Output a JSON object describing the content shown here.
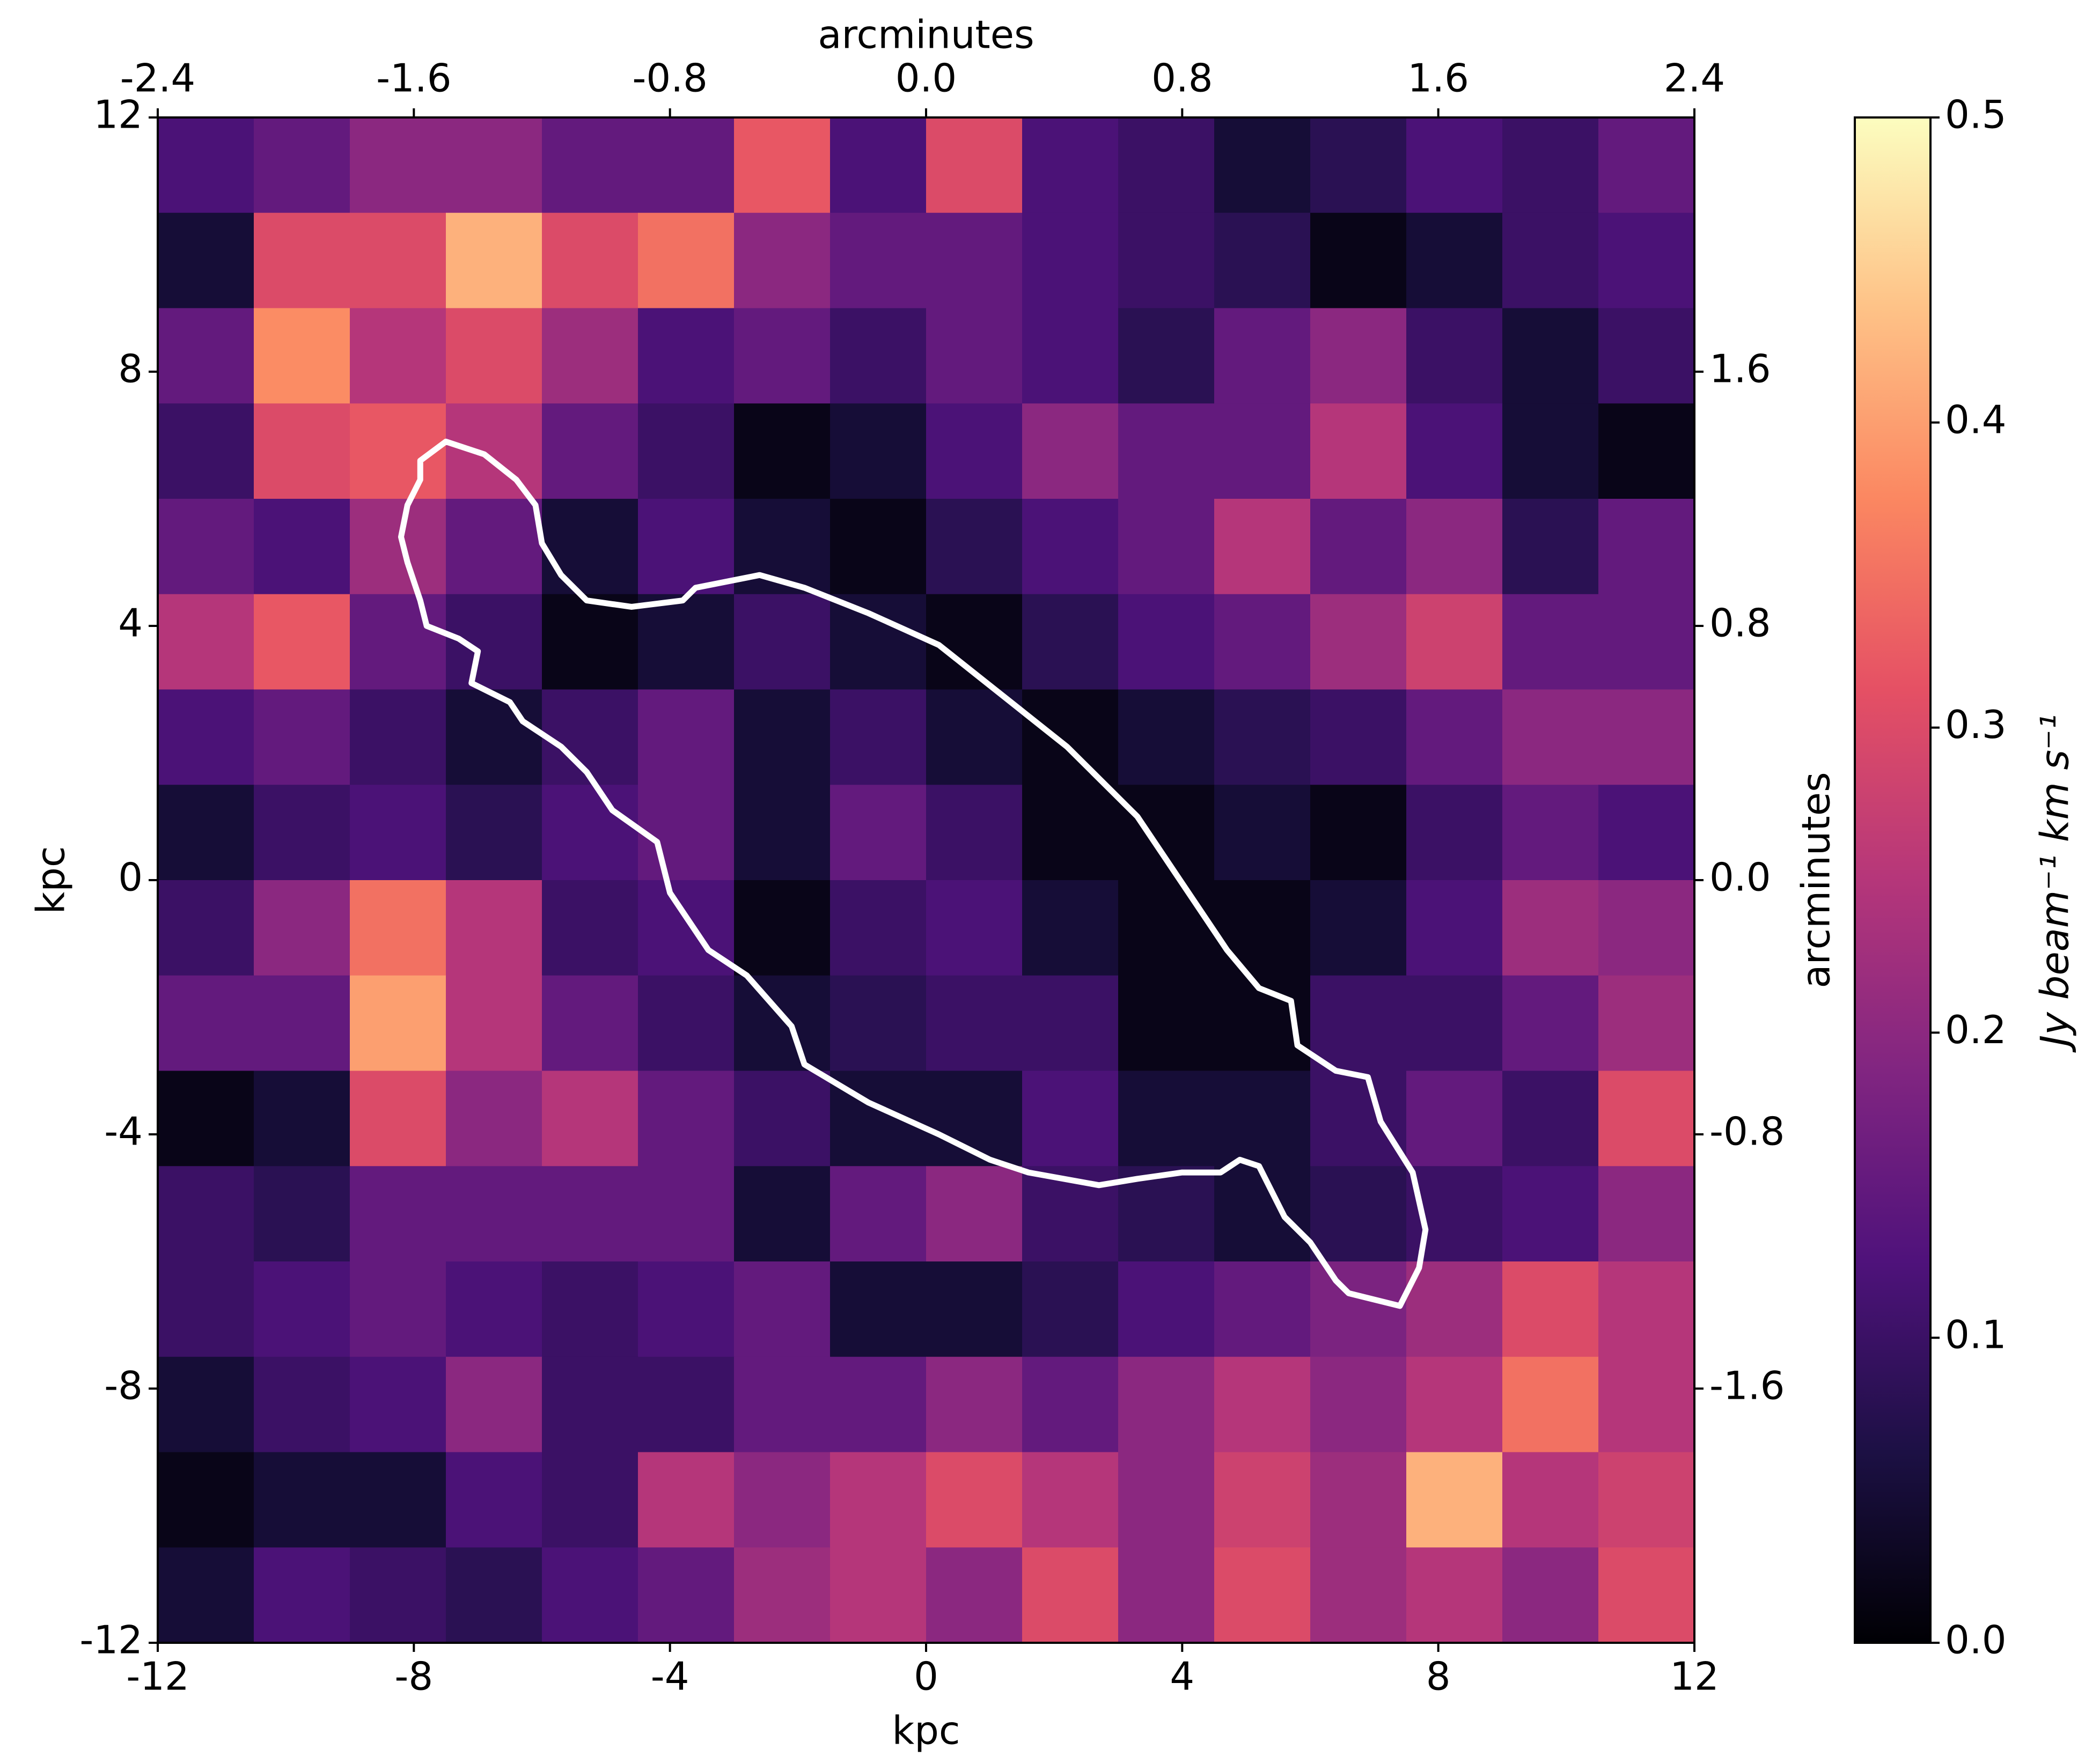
{
  "chart_data": {
    "type": "heatmap",
    "colormap": "magma",
    "xlabel": "kpc",
    "ylabel": "kpc",
    "x2label": "arcminutes",
    "y2label": "arcminutes",
    "xlim": [
      -12,
      12
    ],
    "ylim": [
      -12,
      12
    ],
    "xticks": [
      -12,
      -8,
      -4,
      0,
      4,
      8,
      12
    ],
    "yticks": [
      -12,
      -8,
      -4,
      0,
      4,
      8,
      12
    ],
    "x2lim": [
      -2.4,
      2.4
    ],
    "y2lim": [
      -2.4,
      2.4
    ],
    "x2ticks": [
      -2.4,
      -1.6,
      -0.8,
      {
        "value": 0,
        "label": "0.0"
      },
      0.8,
      1.6,
      2.4
    ],
    "y2ticks": [
      1.6,
      0.8,
      {
        "value": 0,
        "label": "0.0"
      },
      -0.8,
      -1.6
    ],
    "clim": [
      0,
      0.5
    ],
    "cticks": [
      {
        "value": 0,
        "label": "0.0"
      },
      0.1,
      0.2,
      0.3,
      0.4,
      0.5
    ],
    "clabel": "Jy beam⁻¹ km s⁻¹",
    "values": [
      [
        0.12,
        0.15,
        0.2,
        0.2,
        0.15,
        0.15,
        0.32,
        0.12,
        0.3,
        0.12,
        0.1,
        0.05,
        0.08,
        0.12,
        0.1,
        0.15
      ],
      [
        0.05,
        0.3,
        0.3,
        0.42,
        0.3,
        0.35,
        0.2,
        0.15,
        0.15,
        0.12,
        0.1,
        0.08,
        0.02,
        0.05,
        0.1,
        0.12
      ],
      [
        0.15,
        0.38,
        0.25,
        0.3,
        0.22,
        0.12,
        0.15,
        0.1,
        0.15,
        0.12,
        0.08,
        0.15,
        0.2,
        0.1,
        0.05,
        0.1
      ],
      [
        0.1,
        0.3,
        0.32,
        0.25,
        0.15,
        0.1,
        0.02,
        0.05,
        0.12,
        0.2,
        0.15,
        0.15,
        0.25,
        0.12,
        0.05,
        0.02
      ],
      [
        0.15,
        0.12,
        0.22,
        0.15,
        0.05,
        0.12,
        0.05,
        0.02,
        0.08,
        0.12,
        0.15,
        0.25,
        0.15,
        0.2,
        0.08,
        0.15
      ],
      [
        0.25,
        0.32,
        0.15,
        0.1,
        0.02,
        0.05,
        0.1,
        0.05,
        0.02,
        0.08,
        0.12,
        0.15,
        0.22,
        0.28,
        0.15,
        0.15
      ],
      [
        0.12,
        0.15,
        0.1,
        0.05,
        0.1,
        0.15,
        0.05,
        0.1,
        0.05,
        0.02,
        0.05,
        0.08,
        0.1,
        0.15,
        0.2,
        0.2
      ],
      [
        0.05,
        0.1,
        0.12,
        0.08,
        0.12,
        0.15,
        0.05,
        0.15,
        0.1,
        0.02,
        0.02,
        0.05,
        0.02,
        0.1,
        0.15,
        0.12
      ],
      [
        0.1,
        0.2,
        0.35,
        0.25,
        0.1,
        0.12,
        0.02,
        0.1,
        0.12,
        0.05,
        0.02,
        0.02,
        0.05,
        0.12,
        0.22,
        0.2
      ],
      [
        0.15,
        0.15,
        0.4,
        0.25,
        0.15,
        0.1,
        0.05,
        0.08,
        0.1,
        0.1,
        0.02,
        0.02,
        0.1,
        0.1,
        0.15,
        0.22
      ],
      [
        0.02,
        0.05,
        0.3,
        0.2,
        0.25,
        0.15,
        0.1,
        0.05,
        0.05,
        0.12,
        0.05,
        0.05,
        0.1,
        0.15,
        0.1,
        0.3
      ],
      [
        0.1,
        0.08,
        0.15,
        0.15,
        0.15,
        0.15,
        0.05,
        0.15,
        0.2,
        0.1,
        0.08,
        0.05,
        0.08,
        0.1,
        0.12,
        0.2
      ],
      [
        0.1,
        0.12,
        0.15,
        0.12,
        0.1,
        0.12,
        0.15,
        0.05,
        0.05,
        0.08,
        0.12,
        0.15,
        0.18,
        0.22,
        0.3,
        0.25
      ],
      [
        0.05,
        0.1,
        0.12,
        0.2,
        0.1,
        0.1,
        0.15,
        0.15,
        0.2,
        0.15,
        0.2,
        0.25,
        0.2,
        0.25,
        0.35,
        0.25
      ],
      [
        0.02,
        0.05,
        0.05,
        0.12,
        0.1,
        0.25,
        0.2,
        0.25,
        0.3,
        0.25,
        0.2,
        0.28,
        0.22,
        0.42,
        0.25,
        0.28
      ],
      [
        0.05,
        0.12,
        0.1,
        0.08,
        0.12,
        0.15,
        0.22,
        0.25,
        0.2,
        0.3,
        0.2,
        0.3,
        0.22,
        0.25,
        0.2,
        0.3
      ]
    ],
    "contour": {
      "color": "#ffffff",
      "x": [
        -7.9,
        -7.5,
        -6.9,
        -6.4,
        -6.1,
        -6.0,
        -5.7,
        -5.3,
        -4.6,
        -3.8,
        -3.6,
        -2.6,
        -1.9,
        -0.9,
        0.2,
        1.2,
        2.2,
        3.3,
        4.1,
        4.7,
        5.2,
        5.7,
        5.8,
        6.4,
        6.9,
        7.1,
        7.6,
        7.8,
        7.7,
        7.4,
        6.6,
        6.4,
        6.0,
        5.6,
        5.2,
        4.9,
        4.6,
        4.0,
        3.3,
        2.7,
        1.6,
        1.0,
        0.2,
        -0.9,
        -1.9,
        -2.1,
        -2.8,
        -3.4,
        -4.0,
        -4.2,
        -4.9,
        -5.3,
        -5.7,
        -6.3,
        -6.5,
        -7.1,
        -7.0,
        -7.3,
        -7.8,
        -7.9,
        -8.1,
        -8.2,
        -8.1,
        -7.9
      ],
      "y": [
        6.6,
        6.9,
        6.7,
        6.3,
        5.9,
        5.3,
        4.8,
        4.4,
        4.3,
        4.4,
        4.6,
        4.8,
        4.6,
        4.2,
        3.7,
        2.9,
        2.1,
        1.0,
        -0.2,
        -1.1,
        -1.7,
        -1.9,
        -2.6,
        -3.0,
        -3.1,
        -3.8,
        -4.6,
        -5.5,
        -6.1,
        -6.7,
        -6.5,
        -6.3,
        -5.7,
        -5.3,
        -4.5,
        -4.4,
        -4.6,
        -4.6,
        -4.7,
        -4.8,
        -4.6,
        -4.4,
        -4.0,
        -3.5,
        -2.9,
        -2.3,
        -1.5,
        -1.1,
        -0.2,
        0.6,
        1.1,
        1.7,
        2.1,
        2.5,
        2.8,
        3.1,
        3.6,
        3.8,
        4.0,
        4.4,
        5.0,
        5.4,
        5.9,
        6.3
      ]
    }
  }
}
